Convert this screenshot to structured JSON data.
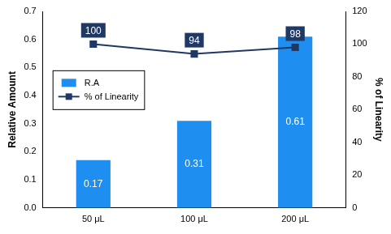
{
  "chart_data": {
    "type": "bar",
    "categories": [
      "50 μL",
      "100 μL",
      "200 μL"
    ],
    "series": [
      {
        "name": "R.A",
        "type": "bar",
        "color": "#1e8ff0",
        "values": [
          0.17,
          0.31,
          0.61
        ]
      },
      {
        "name": "% of Linearity",
        "type": "line",
        "axis": "y2",
        "color": "#1f3864",
        "marker": "square",
        "values": [
          100,
          94,
          98
        ]
      }
    ],
    "ylabel": "Relative Amount",
    "y2label": "% of Linearity",
    "ylim": [
      0,
      0.7
    ],
    "yticks": [
      {
        "value": 0,
        "label": "0.0"
      },
      {
        "value": 0.1,
        "label": "0.1"
      },
      {
        "value": 0.2,
        "label": "0.2"
      },
      {
        "value": 0.3,
        "label": "0.3"
      },
      {
        "value": 0.4,
        "label": "0.4"
      },
      {
        "value": 0.5,
        "label": "0.5"
      },
      {
        "value": 0.6,
        "label": "0.6"
      },
      {
        "value": 0.7,
        "label": "0.7"
      }
    ],
    "y2lim": [
      0,
      120
    ],
    "y2ticks": [
      0,
      20,
      40,
      60,
      80,
      100,
      120
    ],
    "grid": false,
    "legend": "upper left",
    "data_labels": true
  }
}
